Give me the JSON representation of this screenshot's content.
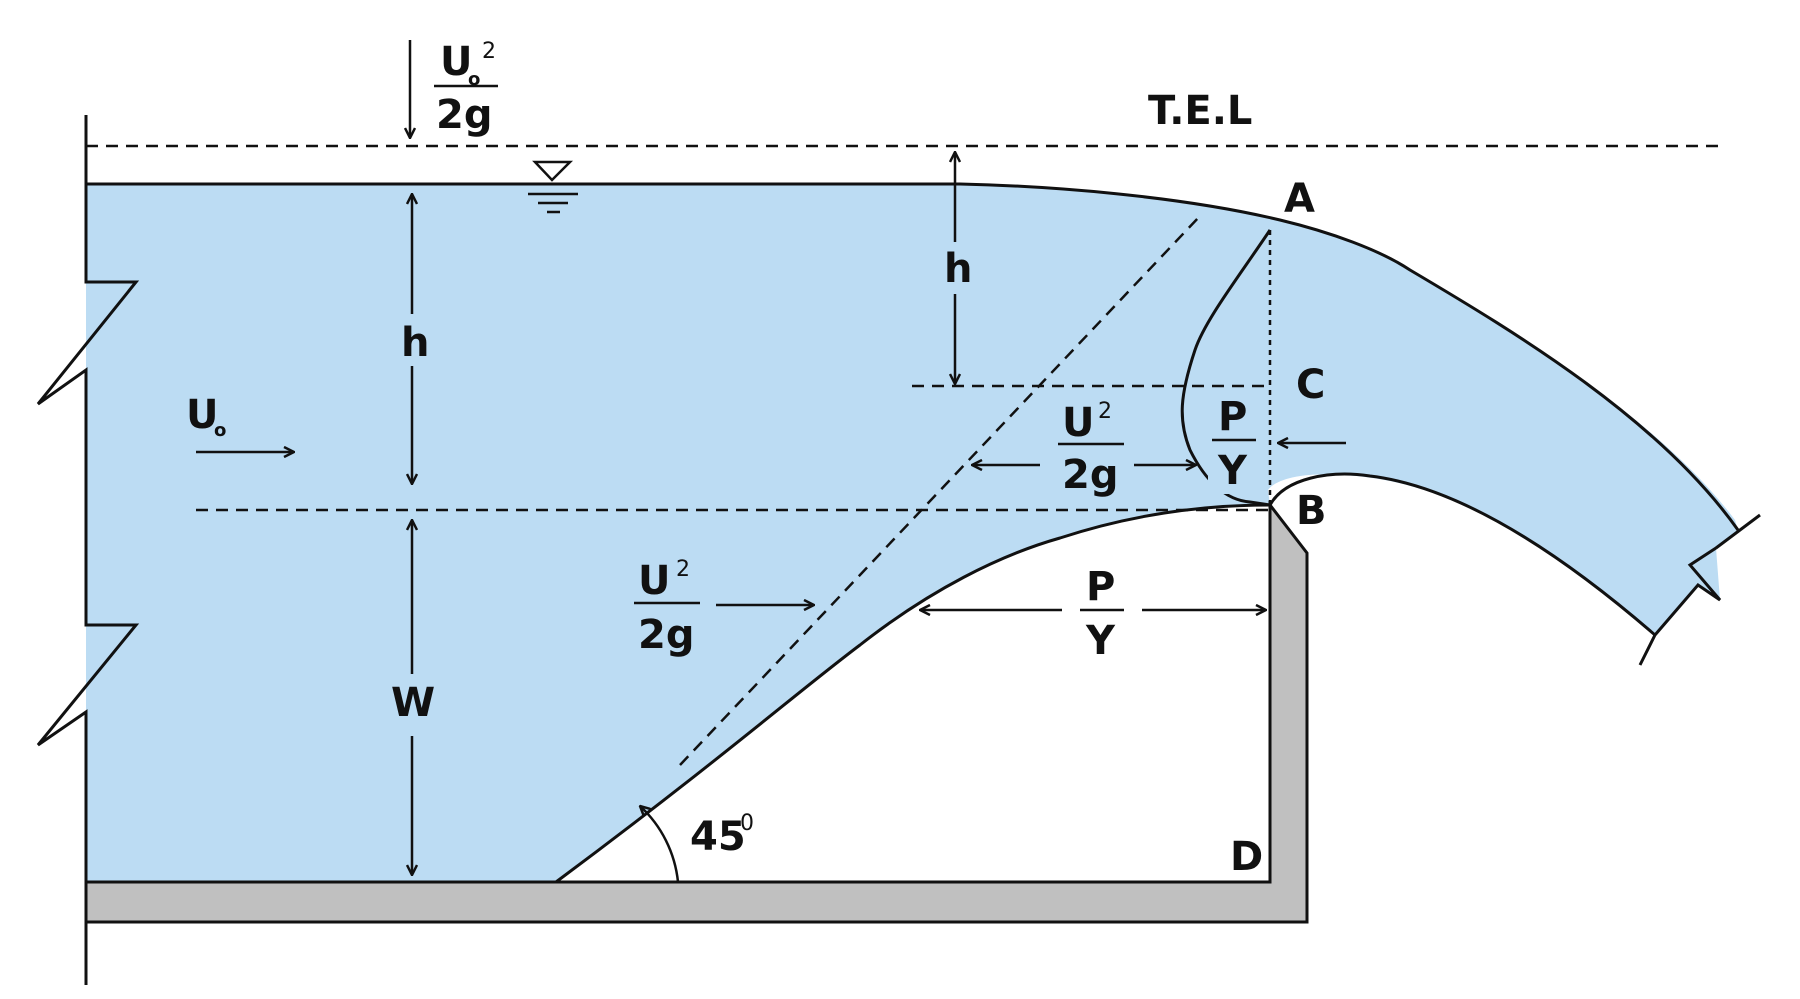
{
  "diagram": {
    "energy_line_label": "T.E.L",
    "velocity_head_top": {
      "numerator": "U",
      "sub": "o",
      "sup": "2",
      "denominator": "2g"
    },
    "approach_velocity": {
      "base": "U",
      "sub": "o"
    },
    "head_left": "h",
    "head_right": "h",
    "weir_height": "W",
    "points": {
      "a": "A",
      "b": "B",
      "c": "C",
      "d": "D"
    },
    "velocity_head_nappe": {
      "numerator": "U",
      "sup": "2",
      "denominator": "2g"
    },
    "velocity_head_lower": {
      "numerator": "U",
      "sup": "2",
      "denominator": "2g"
    },
    "pressure_head_nappe": {
      "numerator": "P",
      "denominator": "Y"
    },
    "pressure_head_lower": {
      "numerator": "P",
      "denominator": "Y"
    },
    "angle": {
      "value": "45",
      "sup": "0"
    },
    "colors": {
      "water": "#bcdcf3",
      "weir": "#c0c0c0",
      "line": "#111111"
    }
  }
}
